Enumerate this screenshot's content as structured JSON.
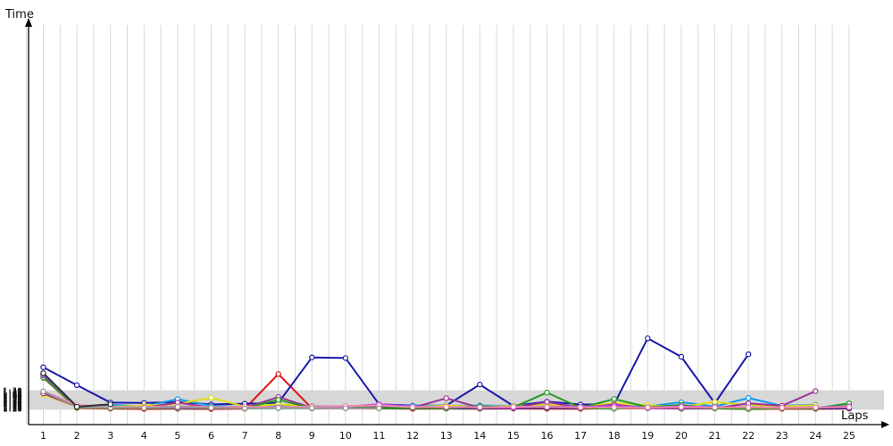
{
  "chart_data": {
    "type": "line",
    "xlabel": "Laps",
    "ylabel": "Time",
    "xlim": [
      0,
      25.4
    ],
    "ylim": [
      4795,
      5455
    ],
    "x": [
      1,
      2,
      3,
      4,
      5,
      6,
      7,
      8,
      9,
      10,
      11,
      12,
      13,
      14,
      15,
      16,
      17,
      18,
      19,
      20,
      21,
      22,
      23,
      24,
      25
    ],
    "x_tick_labels": [
      "1",
      "2",
      "3",
      "4",
      "5",
      "6",
      "7",
      "8",
      "9",
      "10",
      "11",
      "12",
      "13",
      "14",
      "15",
      "16",
      "17",
      "18",
      "19",
      "20",
      "21",
      "22",
      "23",
      "24",
      "25"
    ],
    "y_ticks": [
      4820,
      4821,
      4822,
      4823,
      4824,
      4825,
      4826,
      4827,
      4828,
      4829,
      4830,
      4831,
      4832,
      4833,
      4834,
      4835,
      4836,
      4837,
      4838,
      4839,
      4840,
      4841,
      4842,
      4843,
      4844,
      4845,
      4846,
      4847,
      4848,
      4849,
      4850
    ],
    "y_tick_labels": [
      "1:20",
      "1:21",
      "1:22",
      "1:23",
      "1:24",
      "1:25",
      "1:26",
      "1:27",
      "1:28",
      "1:29",
      "1:30",
      "1:31",
      "1:32",
      "1:33",
      "1:34",
      "1:35",
      "1:36",
      "1:37",
      "1:38",
      "1:39",
      "1:40",
      "1:41",
      "1:42",
      "1:43",
      "1:44",
      "1:45",
      "1:46",
      "1:47",
      "1:48",
      "1:49",
      "1:50"
    ],
    "grid": true,
    "series": [
      {
        "color": "#dd1111",
        "values": [
          4871,
          4822,
          4820.9,
          4820.3,
          4820.7,
          4820.4,
          4820.7,
          4877,
          4821.3,
          4821.6,
          4821.2,
          4820.6,
          4820.9,
          4820.8,
          4821,
          4820.8,
          4820.6,
          4821.3,
          4822.1,
          4821.1,
          4821.2,
          4820.2,
          4820.6,
          4820.5,
          4821
        ]
      },
      {
        "color": "#22aa22",
        "values": [
          4871.5,
          4822.8,
          4821.8,
          4821.9,
          4821.5,
          4821.8,
          4821.5,
          4821.7,
          4821.8,
          4822.2,
          4821.2,
          4821.7,
          4821.4,
          4821.3,
          4821.9,
          4822,
          4822,
          4820.5,
          4826.2,
          4820.7,
          4821.3,
          4821.9,
          4821.9,
          4821.4,
          4825.4
        ]
      },
      {
        "color": "#1a1aaa",
        "values": [
          4875,
          4824,
          4823.6,
          4822.3,
          4821.9,
          4822.3,
          4822.5,
          4822.5,
          4822.3,
          4822.3,
          4821.9,
          4821.9,
          4822,
          4821.9,
          4821.8,
          4822.3,
          4821.8,
          4826.8,
          4822.4,
          4822,
          4822.5,
          4822.3,
          4822,
          4821.7,
          4821.6
        ]
      },
      {
        "color": "#1a1aaa",
        "values": [
          4888,
          4859,
          4830.8,
          4830.1,
          4831.5,
          4827.7,
          4828.8,
          4830.3,
          4904,
          4903,
          4828,
          4825.7,
          4825.9,
          4860,
          4825.2,
          4832.2,
          4827.5,
          4828,
          4935,
          4905,
          4829.8,
          4909,
          null,
          null,
          null
        ]
      },
      {
        "color": "#1199ee",
        "values": [
          4878.5,
          4824.5,
          4827.2,
          4824.5,
          4836.3,
          4825.4,
          4823.8,
          4825.4,
          4825.1,
          4824.6,
          4824.7,
          4825.6,
          4825.6,
          4826,
          4825.4,
          4825.7,
          4824.1,
          4824.1,
          4824.5,
          4831.4,
          4824.3,
          4838.3,
          4825.4,
          4827.1,
          null
        ]
      },
      {
        "color": "#dddd11",
        "values": [
          4843.5,
          4824,
          4824,
          4825.8,
          4828.5,
          4838.6,
          4824.2,
          4827.9,
          4824.4,
          4823.1,
          4824.6,
          4823.5,
          4825.7,
          4824.1,
          4825.1,
          4827.5,
          4823.2,
          4830.3,
          4826.6,
          4823.5,
          4831.8,
          4826.6,
          4824.7,
          4826.2,
          null
        ]
      },
      {
        "color": "#993399",
        "values": [
          4845.6,
          4824,
          4822.6,
          4822.1,
          4830.8,
          4822.4,
          4822,
          4839.7,
          4822.2,
          4823.2,
          4824.5,
          4822.3,
          4837.8,
          4822.5,
          4822.4,
          4831.7,
          4822.1,
          4827.5,
          4821.5,
          4821.3,
          4821.3,
          4829.4,
          4825.6,
          4849.3,
          null
        ]
      },
      {
        "color": "#229922",
        "values": [
          4875.8,
          4823.1,
          4822.3,
          4822.5,
          4821.7,
          4823.8,
          4821.6,
          4835.2,
          4821.7,
          4823.1,
          4821.8,
          4822.4,
          4821.7,
          4824.6,
          4822.9,
          4847,
          4822.2,
          4836.6,
          4823.3,
          4826.8,
          4821.2,
          4820.4,
          4821.6,
          4821.6,
          4829.4
        ]
      },
      {
        "color": "#bb44ee",
        "values": [
          4876.2,
          4824.2,
          4823.3,
          4822.9,
          4822.4,
          4822.7,
          4822.4,
          4823.4,
          4823,
          4824,
          4828.1,
          4823.9,
          4823.2,
          4823.3,
          4822.5,
          4824.2,
          4823.8,
          4825.1,
          4822.7,
          4824.7,
          4823.4,
          4823.1,
          4822.5,
          4823.1,
          4824.6
        ]
      },
      {
        "color": "#f088aa",
        "values": [
          4849,
          4827.1,
          4823.3,
          4823.6,
          4825.1,
          4823.4,
          4824.3,
          4823.4,
          4824.5,
          4825.1,
          4826.1,
          4823.4,
          4823.9,
          4823.1,
          4823.9,
          4823.6,
          4823,
          4822.9,
          4823,
          4823.5,
          4822.8,
          4822.8,
          4822.4,
          4823,
          4823.3
        ]
      },
      {
        "color": "#999999",
        "values": [
          4849,
          4823.7,
          4822.5,
          4822.1,
          4823.8,
          4822.3,
          4821.3,
          4821.9,
          4821.9,
          4821.6,
          4821.4,
          null,
          null,
          null,
          null,
          null,
          null,
          null,
          null,
          null,
          null,
          null,
          null,
          null,
          null
        ]
      },
      {
        "color": "#333333",
        "values": [
          4878.5,
          4823.9,
          4827.9,
          null,
          null,
          null,
          null,
          null,
          null,
          null,
          null,
          null,
          null,
          null,
          null,
          null,
          null,
          null,
          null,
          null,
          null,
          null,
          null,
          null,
          null
        ]
      }
    ]
  }
}
